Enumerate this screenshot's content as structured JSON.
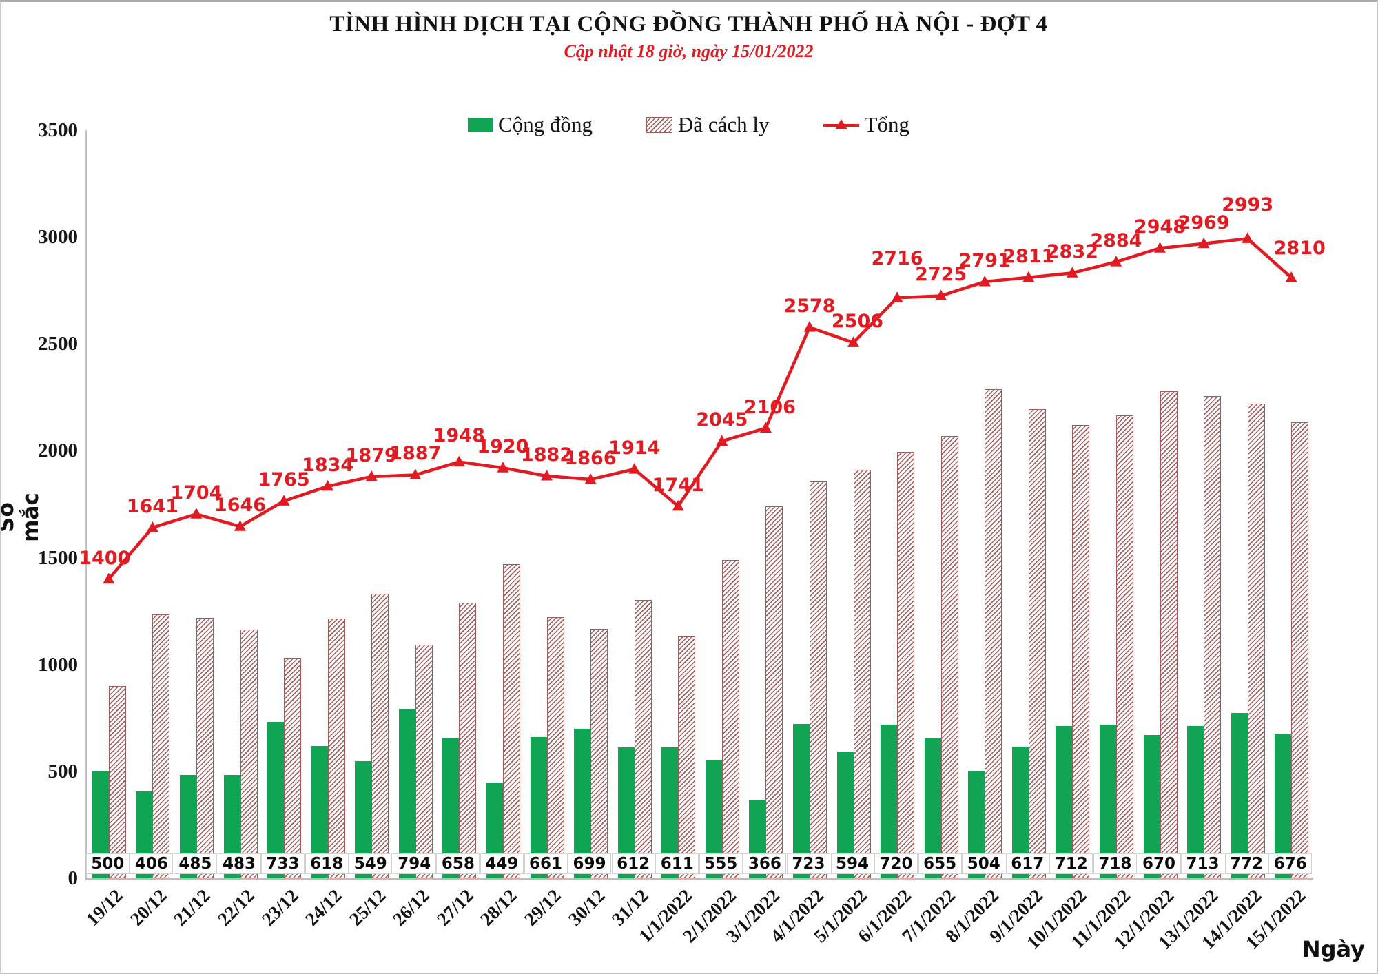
{
  "title": "TÌNH HÌNH DỊCH TẠI CỘNG ĐỒNG THÀNH PHỐ HÀ NỘI - ĐỢT 4",
  "subtitle": "Cập nhật 18 giờ, ngày 15/01/2022",
  "legend": {
    "community": "Cộng đồng",
    "isolated": "Đã cách ly",
    "total": "Tổng"
  },
  "y_axis": {
    "title": "Số mắc",
    "ticks": [
      0,
      500,
      1000,
      1500,
      2000,
      2500,
      3000,
      3500
    ],
    "max": 3500
  },
  "x_axis": {
    "title": "Ngày"
  },
  "colors": {
    "community_green": "#0fa554",
    "isolated_hatch": "#a25b5b",
    "total_red": "#e21a22"
  },
  "chart_data": {
    "type": "bar",
    "title": "TÌNH HÌNH DỊCH TẠI CỘNG ĐỒNG THÀNH PHỐ HÀ NỘI - ĐỢT 4",
    "xlabel": "Ngày",
    "ylabel": "Số mắc",
    "ylim": [
      0,
      3500
    ],
    "grid": false,
    "legend_position": "top",
    "categories": [
      "19/12",
      "20/12",
      "21/12",
      "22/12",
      "23/12",
      "24/12",
      "25/12",
      "26/12",
      "27/12",
      "28/12",
      "29/12",
      "30/12",
      "31/12",
      "1/1/2022",
      "2/1/2022",
      "3/1/2022",
      "4/1/2022",
      "5/1/2022",
      "6/1/2022",
      "7/1/2022",
      "8/1/2022",
      "9/1/2022",
      "10/1/2022",
      "11/1/2022",
      "12/1/2022",
      "13/1/2022",
      "14/1/2022",
      "15/1/2022"
    ],
    "series": [
      {
        "name": "Cộng đồng",
        "type": "bar",
        "style": "solid",
        "color": "#0fa554",
        "values": [
          500,
          406,
          485,
          483,
          733,
          618,
          549,
          794,
          658,
          449,
          661,
          699,
          612,
          611,
          555,
          366,
          723,
          594,
          720,
          655,
          504,
          617,
          712,
          718,
          670,
          713,
          772,
          676
        ]
      },
      {
        "name": "Đã cách ly",
        "type": "bar",
        "style": "hatched",
        "color": "#a25b5b",
        "values": [
          900,
          1235,
          1219,
          1163,
          1032,
          1216,
          1330,
          1093,
          1290,
          1471,
          1221,
          1167,
          1302,
          1130,
          1490,
          1740,
          1855,
          1912,
          1996,
          2070,
          2287,
          2194,
          2120,
          2166,
          2278,
          2256,
          2221,
          2134
        ]
      },
      {
        "name": "Tổng",
        "type": "line",
        "marker": "triangle",
        "color": "#e21a22",
        "values": [
          1400,
          1641,
          1704,
          1646,
          1765,
          1834,
          1879,
          1887,
          1948,
          1920,
          1882,
          1866,
          1914,
          1741,
          2045,
          2106,
          2578,
          2506,
          2716,
          2725,
          2791,
          2811,
          2832,
          2884,
          2948,
          2969,
          2993,
          2810
        ]
      }
    ]
  }
}
